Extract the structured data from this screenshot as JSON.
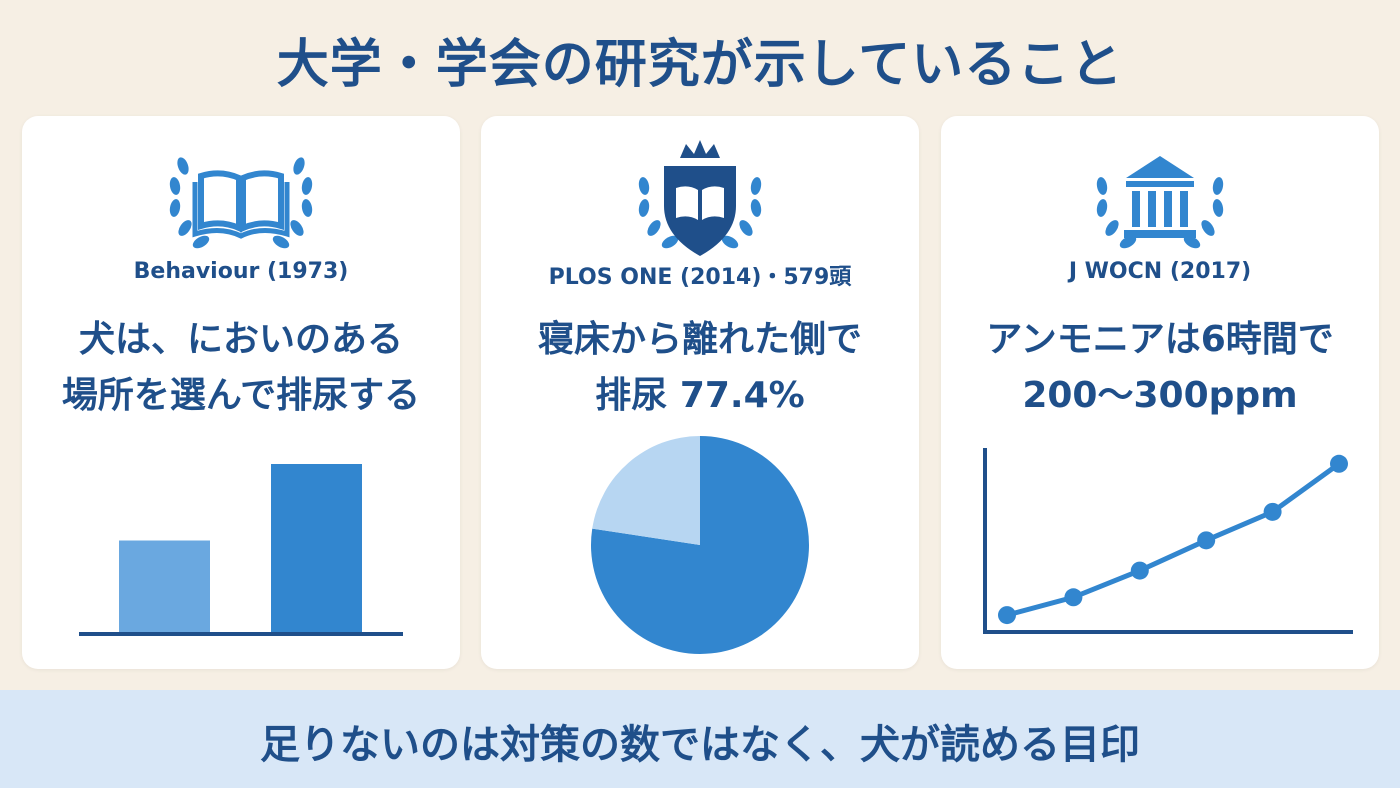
{
  "title": "大学・学会の研究が示していること",
  "colors": {
    "navy": "#1f4f8a",
    "blue": "#3286cf",
    "light_blue": "#6aa8e0",
    "pale_blue": "#b7d6f2",
    "background": "#f6efe4",
    "footer_bg": "#d8e7f7"
  },
  "cards": [
    {
      "icon": "open-book-laurel-icon",
      "source": "Behaviour (1973)",
      "headline_lines": [
        "犬は、においのある",
        "場所を選んで排尿する"
      ]
    },
    {
      "icon": "crest-book-crown-icon",
      "source": "PLOS ONE (2014)・579頭",
      "headline_lines": [
        "寝床から離れた側で",
        "排尿 77.4%"
      ]
    },
    {
      "icon": "institution-building-laurel-icon",
      "source": "J WOCN (2017)",
      "headline_lines": [
        "アンモニアは6時間で",
        "200〜300ppm"
      ]
    }
  ],
  "chart_data": [
    {
      "type": "bar",
      "categories": [
        "",
        ""
      ],
      "values": [
        0.55,
        1.0
      ],
      "ylim": [
        0,
        1.1
      ],
      "colors": [
        "#6aa8e0",
        "#3286cf"
      ]
    },
    {
      "type": "pie",
      "values": [
        77.4,
        22.6
      ],
      "colors": [
        "#3286cf",
        "#b7d6f2"
      ]
    },
    {
      "type": "line",
      "x": [
        0,
        1,
        2,
        3,
        4,
        5
      ],
      "y": [
        0.05,
        0.15,
        0.3,
        0.47,
        0.63,
        0.9
      ],
      "xlim": [
        0,
        5
      ],
      "ylim": [
        0,
        1
      ]
    }
  ],
  "footer": {
    "text": "足りないのは対策の数ではなく、犬が読める目印"
  }
}
